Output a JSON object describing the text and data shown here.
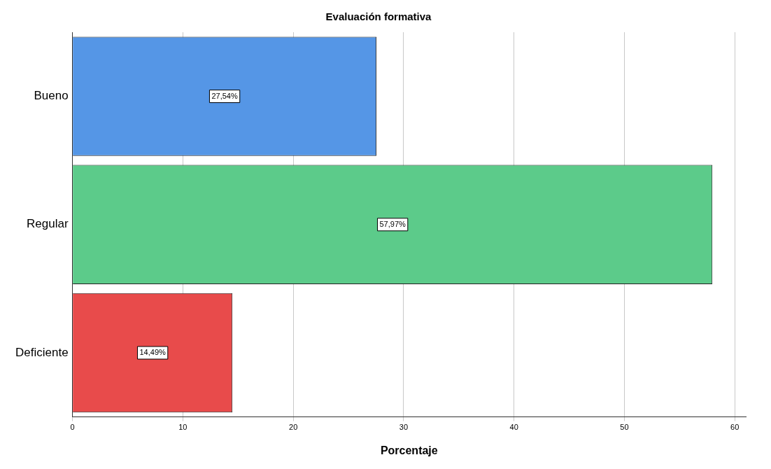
{
  "chart_data": {
    "type": "bar",
    "orientation": "horizontal",
    "title": "Evaluación formativa",
    "xlabel": "Porcentaje",
    "categories": [
      "Bueno",
      "Regular",
      "Deficiente"
    ],
    "values": [
      27.54,
      57.97,
      14.49
    ],
    "colors": [
      "#5596e6",
      "#5ccb8a",
      "#e84b4b"
    ],
    "value_labels": [
      "27,54%",
      "57,97%",
      "14,49%"
    ],
    "xlim": [
      0,
      61
    ],
    "xticks": [
      0,
      10,
      20,
      30,
      40,
      50,
      60
    ],
    "grid": "x",
    "legend": false
  }
}
